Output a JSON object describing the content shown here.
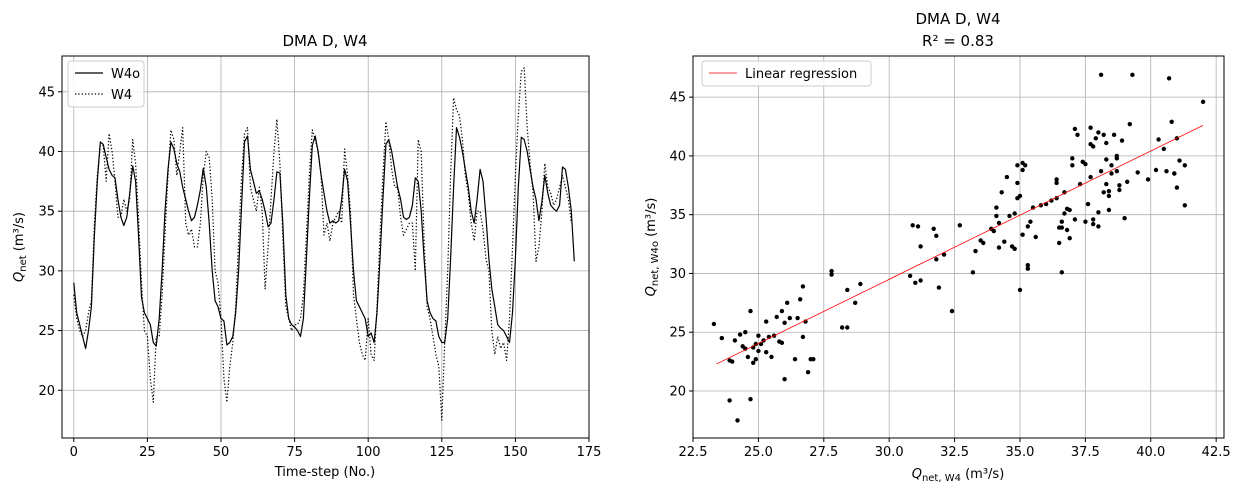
{
  "chart_data": [
    {
      "type": "line",
      "title": "DMA D, W4",
      "xlabel": "Time-step (No.)",
      "ylabel": {
        "main": "Q",
        "sub": "net",
        "unit": " (m³/s)"
      },
      "xlim": [
        -4,
        175
      ],
      "ylim": [
        16,
        48
      ],
      "xticks": [
        0,
        25,
        50,
        75,
        100,
        125,
        150,
        175
      ],
      "yticks": [
        20,
        25,
        30,
        35,
        40,
        45
      ],
      "grid": true,
      "legend": "top-left",
      "series": [
        {
          "name": "W4o",
          "style": "solid",
          "color": "#000000",
          "values": [
            29.0,
            26.5,
            25.5,
            24.5,
            23.5,
            25.0,
            27.0,
            33.0,
            37.5,
            40.8,
            40.6,
            39.5,
            38.5,
            38.0,
            37.8,
            36.0,
            34.5,
            33.8,
            34.5,
            36.5,
            38.8,
            37.5,
            33.0,
            27.8,
            26.5,
            26.0,
            25.5,
            24.0,
            23.7,
            26.0,
            30.0,
            35.0,
            38.5,
            40.8,
            40.2,
            39.0,
            38.3,
            37.0,
            36.0,
            35.0,
            34.2,
            34.5,
            35.5,
            36.8,
            38.6,
            37.0,
            34.0,
            30.0,
            27.5,
            27.0,
            26.0,
            25.8,
            23.8,
            24.0,
            24.5,
            26.5,
            30.0,
            35.5,
            40.8,
            41.3,
            38.5,
            37.5,
            36.5,
            36.7,
            36.0,
            35.0,
            33.7,
            34.0,
            36.0,
            38.3,
            38.2,
            34.0,
            28.0,
            26.0,
            25.5,
            25.3,
            25.0,
            24.5,
            26.0,
            31.0,
            36.0,
            40.5,
            41.3,
            40.0,
            38.0,
            36.5,
            35.0,
            34.0,
            34.2,
            34.0,
            34.2,
            36.0,
            38.5,
            37.5,
            34.0,
            30.0,
            27.5,
            27.0,
            26.5,
            26.0,
            24.5,
            24.8,
            24.0,
            26.5,
            31.0,
            36.0,
            40.6,
            41.0,
            40.0,
            38.5,
            37.0,
            36.0,
            34.5,
            34.3,
            34.5,
            35.5,
            37.8,
            37.5,
            35.0,
            31.0,
            27.5,
            26.5,
            26.0,
            25.8,
            24.5,
            24.0,
            24.0,
            26.0,
            31.0,
            37.0,
            42.0,
            41.2,
            40.0,
            38.5,
            37.0,
            35.0,
            34.0,
            36.0,
            38.5,
            37.5,
            34.5,
            31.0,
            28.5,
            27.0,
            25.5,
            25.2,
            25.0,
            24.5,
            24.0,
            26.5,
            31.0,
            37.0,
            41.2,
            41.0,
            40.0,
            38.5,
            37.0,
            36.0,
            34.2,
            35.8,
            38.0,
            36.5,
            35.5,
            35.2,
            35.0,
            35.5,
            38.7,
            38.5,
            37.0,
            35.0,
            30.8
          ]
        },
        {
          "name": "W4",
          "style": "dotted",
          "color": "#000000",
          "values": [
            28.0,
            26.0,
            25.0,
            24.5,
            25.0,
            26.5,
            27.5,
            34.0,
            38.0,
            40.5,
            40.5,
            37.5,
            41.5,
            40.0,
            37.5,
            34.5,
            34.5,
            36.0,
            35.0,
            36.0,
            41.0,
            39.0,
            34.5,
            29.0,
            25.0,
            24.5,
            21.0,
            19.0,
            24.5,
            24.5,
            28.0,
            33.0,
            38.0,
            41.8,
            41.0,
            38.0,
            40.0,
            42.0,
            34.0,
            33.0,
            33.5,
            32.0,
            32.0,
            34.0,
            38.0,
            40.0,
            39.5,
            36.0,
            30.0,
            29.0,
            26.0,
            21.0,
            19.0,
            22.0,
            24.0,
            27.0,
            32.5,
            38.0,
            41.5,
            42.0,
            37.0,
            36.0,
            35.0,
            37.0,
            35.0,
            28.5,
            32.0,
            36.0,
            40.0,
            42.7,
            39.0,
            33.0,
            27.0,
            26.0,
            25.0,
            25.5,
            25.5,
            26.0,
            28.0,
            33.0,
            38.0,
            41.8,
            41.0,
            40.0,
            38.0,
            33.0,
            34.0,
            32.5,
            34.0,
            34.5,
            35.0,
            34.0,
            40.2,
            38.0,
            35.0,
            28.0,
            26.0,
            24.0,
            23.0,
            22.5,
            26.0,
            23.0,
            22.5,
            27.0,
            33.0,
            38.0,
            42.5,
            41.0,
            38.5,
            37.0,
            37.0,
            34.5,
            33.0,
            33.5,
            34.0,
            34.0,
            30.0,
            41.0,
            40.0,
            32.5,
            27.0,
            26.0,
            24.5,
            23.0,
            22.0,
            17.5,
            24.0,
            30.0,
            38.0,
            44.5,
            43.5,
            43.0,
            41.0,
            38.0,
            36.5,
            34.0,
            32.5,
            35.0,
            35.0,
            33.5,
            31.0,
            30.0,
            25.0,
            23.0,
            24.5,
            23.5,
            24.0,
            22.5,
            26.0,
            32.0,
            38.0,
            43.0,
            46.7,
            47.0,
            42.0,
            39.0,
            36.5,
            30.8,
            32.0,
            35.0,
            39.0,
            37.0,
            36.5,
            35.5,
            36.0,
            37.0,
            38.0,
            37.0,
            36.0,
            34.0
          ]
        }
      ]
    },
    {
      "type": "scatter",
      "title": "DMA D, W4",
      "subtitle": "R² = 0.83",
      "xlabel": {
        "main": "Q",
        "sub": "net, W4",
        "unit": " (m³/s)"
      },
      "ylabel": {
        "main": "Q",
        "sub": "net, W4o",
        "unit": " (m³/s)"
      },
      "xlim": [
        22.5,
        42.8
      ],
      "ylim": [
        16,
        48.5
      ],
      "xticks": [
        22.5,
        25.0,
        27.5,
        30.0,
        32.5,
        35.0,
        37.5,
        40.0,
        42.5
      ],
      "xtick_labels": [
        "22.5",
        "25.0",
        "27.5",
        "30.0",
        "32.5",
        "35.0",
        "37.5",
        "40.0",
        "42.5"
      ],
      "yticks": [
        20,
        25,
        30,
        35,
        40,
        45
      ],
      "grid": true,
      "legend": "top-left",
      "regression": {
        "name": "Linear regression",
        "color": "#ff0000",
        "x": [
          23.4,
          42.0
        ],
        "y": [
          22.3,
          42.6
        ]
      },
      "points": [
        [
          23.3,
          25.7
        ],
        [
          23.6,
          24.5
        ],
        [
          23.9,
          22.6
        ],
        [
          23.9,
          19.2
        ],
        [
          24.0,
          22.5
        ],
        [
          24.1,
          24.3
        ],
        [
          24.2,
          17.5
        ],
        [
          24.3,
          24.8
        ],
        [
          24.4,
          23.8
        ],
        [
          24.5,
          23.6
        ],
        [
          24.5,
          25.0
        ],
        [
          24.6,
          22.9
        ],
        [
          24.7,
          26.8
        ],
        [
          24.7,
          19.3
        ],
        [
          24.8,
          22.4
        ],
        [
          24.8,
          23.7
        ],
        [
          24.9,
          22.7
        ],
        [
          24.9,
          24.0
        ],
        [
          25.0,
          24.7
        ],
        [
          25.0,
          23.4
        ],
        [
          25.1,
          24.0
        ],
        [
          25.2,
          24.3
        ],
        [
          25.3,
          23.3
        ],
        [
          25.3,
          25.9
        ],
        [
          25.4,
          24.6
        ],
        [
          25.5,
          22.9
        ],
        [
          25.6,
          24.7
        ],
        [
          25.7,
          26.3
        ],
        [
          25.8,
          24.2
        ],
        [
          25.9,
          24.1
        ],
        [
          25.9,
          26.8
        ],
        [
          26.0,
          25.8
        ],
        [
          26.0,
          21.0
        ],
        [
          26.1,
          27.5
        ],
        [
          26.2,
          26.2
        ],
        [
          26.4,
          22.7
        ],
        [
          26.5,
          26.2
        ],
        [
          26.6,
          27.8
        ],
        [
          26.7,
          28.9
        ],
        [
          26.7,
          24.6
        ],
        [
          26.8,
          25.9
        ],
        [
          26.9,
          21.6
        ],
        [
          27.0,
          22.7
        ],
        [
          27.1,
          22.7
        ],
        [
          27.8,
          30.2
        ],
        [
          27.8,
          29.9
        ],
        [
          28.2,
          25.4
        ],
        [
          28.4,
          25.4
        ],
        [
          28.4,
          28.6
        ],
        [
          28.7,
          27.5
        ],
        [
          28.9,
          29.1
        ],
        [
          30.8,
          29.8
        ],
        [
          30.9,
          34.1
        ],
        [
          31.0,
          29.2
        ],
        [
          31.1,
          34.0
        ],
        [
          31.2,
          32.3
        ],
        [
          31.2,
          29.4
        ],
        [
          31.7,
          33.8
        ],
        [
          31.8,
          31.2
        ],
        [
          31.8,
          33.2
        ],
        [
          31.9,
          28.8
        ],
        [
          32.1,
          31.6
        ],
        [
          32.4,
          26.8
        ],
        [
          32.7,
          34.1
        ],
        [
          33.2,
          30.1
        ],
        [
          33.3,
          31.9
        ],
        [
          33.5,
          32.8
        ],
        [
          33.6,
          32.6
        ],
        [
          33.9,
          33.8
        ],
        [
          34.0,
          33.6
        ],
        [
          34.1,
          35.6
        ],
        [
          34.1,
          34.9
        ],
        [
          34.2,
          34.3
        ],
        [
          34.2,
          32.2
        ],
        [
          34.3,
          36.9
        ],
        [
          34.4,
          32.7
        ],
        [
          34.5,
          38.2
        ],
        [
          34.6,
          34.9
        ],
        [
          34.7,
          32.3
        ],
        [
          34.8,
          32.1
        ],
        [
          34.8,
          35.1
        ],
        [
          34.9,
          39.2
        ],
        [
          34.9,
          37.7
        ],
        [
          34.9,
          36.4
        ],
        [
          35.0,
          36.6
        ],
        [
          35.0,
          28.6
        ],
        [
          35.1,
          33.3
        ],
        [
          35.1,
          38.8
        ],
        [
          35.1,
          39.4
        ],
        [
          35.2,
          39.2
        ],
        [
          35.3,
          30.7
        ],
        [
          35.3,
          30.4
        ],
        [
          35.3,
          34.0
        ],
        [
          35.4,
          34.4
        ],
        [
          35.5,
          35.6
        ],
        [
          35.6,
          33.1
        ],
        [
          35.8,
          35.8
        ],
        [
          36.0,
          35.9
        ],
        [
          36.2,
          36.2
        ],
        [
          36.4,
          38.0
        ],
        [
          36.4,
          37.7
        ],
        [
          36.4,
          36.4
        ],
        [
          36.5,
          32.6
        ],
        [
          36.5,
          33.9
        ],
        [
          36.6,
          33.9
        ],
        [
          36.6,
          34.4
        ],
        [
          36.6,
          30.1
        ],
        [
          36.7,
          35.1
        ],
        [
          36.7,
          36.9
        ],
        [
          36.8,
          35.5
        ],
        [
          36.8,
          33.7
        ],
        [
          36.9,
          35.4
        ],
        [
          36.9,
          33.0
        ],
        [
          37.0,
          39.2
        ],
        [
          37.0,
          39.8
        ],
        [
          37.1,
          42.3
        ],
        [
          37.1,
          34.6
        ],
        [
          37.2,
          41.8
        ],
        [
          37.3,
          37.6
        ],
        [
          37.4,
          39.5
        ],
        [
          37.5,
          39.3
        ],
        [
          37.5,
          34.4
        ],
        [
          37.6,
          35.9
        ],
        [
          37.7,
          42.4
        ],
        [
          37.7,
          41.0
        ],
        [
          37.7,
          38.2
        ],
        [
          37.8,
          40.8
        ],
        [
          37.8,
          34.2
        ],
        [
          37.8,
          34.6
        ],
        [
          37.9,
          41.5
        ],
        [
          38.0,
          42.0
        ],
        [
          38.0,
          35.2
        ],
        [
          38.0,
          34.0
        ],
        [
          38.1,
          38.7
        ],
        [
          38.1,
          46.9
        ],
        [
          38.2,
          36.9
        ],
        [
          38.2,
          41.8
        ],
        [
          38.3,
          37.6
        ],
        [
          38.3,
          41.1
        ],
        [
          38.3,
          39.7
        ],
        [
          38.4,
          35.4
        ],
        [
          38.4,
          36.6
        ],
        [
          38.4,
          37.0
        ],
        [
          38.5,
          39.2
        ],
        [
          38.5,
          38.5
        ],
        [
          38.6,
          41.8
        ],
        [
          38.7,
          40.0
        ],
        [
          38.7,
          39.8
        ],
        [
          38.7,
          38.7
        ],
        [
          38.8,
          37.5
        ],
        [
          38.8,
          37.1
        ],
        [
          38.9,
          41.3
        ],
        [
          39.0,
          34.7
        ],
        [
          39.1,
          37.8
        ],
        [
          39.2,
          42.7
        ],
        [
          39.3,
          46.9
        ],
        [
          39.5,
          38.6
        ],
        [
          39.9,
          38.0
        ],
        [
          40.2,
          38.8
        ],
        [
          40.3,
          41.4
        ],
        [
          40.5,
          40.6
        ],
        [
          40.6,
          38.7
        ],
        [
          40.7,
          46.6
        ],
        [
          40.8,
          42.9
        ],
        [
          40.9,
          38.5
        ],
        [
          40.9,
          38.5
        ],
        [
          41.0,
          41.5
        ],
        [
          41.0,
          37.3
        ],
        [
          41.1,
          39.6
        ],
        [
          41.3,
          39.2
        ],
        [
          41.3,
          35.8
        ],
        [
          42.0,
          44.6
        ]
      ]
    }
  ]
}
